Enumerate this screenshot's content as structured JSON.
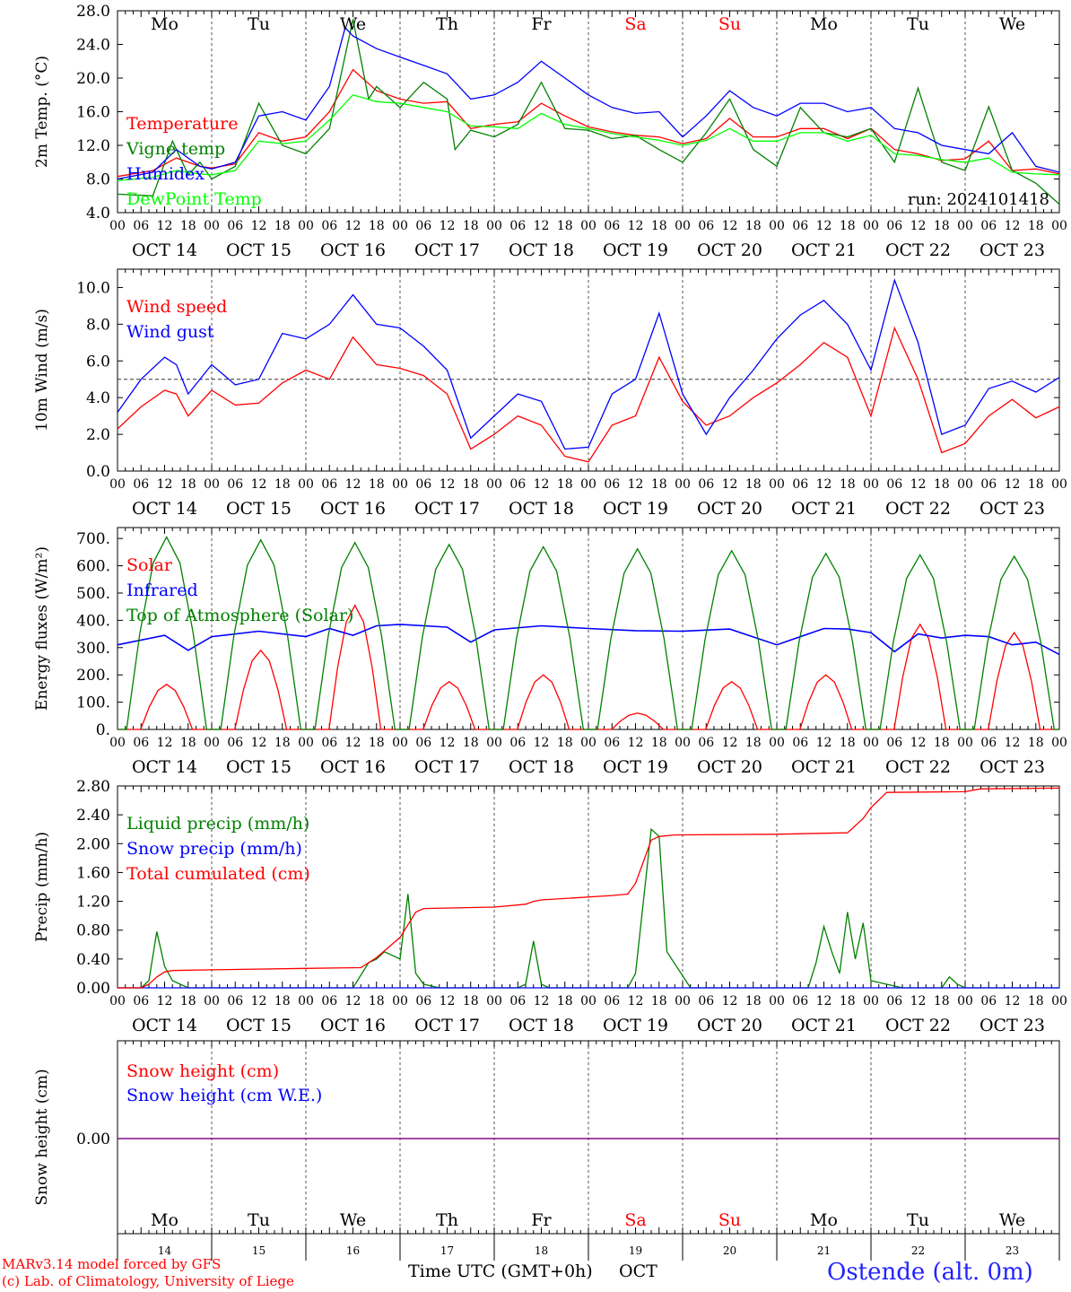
{
  "run_label": "run: 2024101418",
  "day_abbrevs": [
    "Mo",
    "Tu",
    "We",
    "Th",
    "Fr",
    "Sa",
    "Su",
    "Mo",
    "Tu",
    "We"
  ],
  "day_colors": [
    "#000000",
    "#000000",
    "#000000",
    "#000000",
    "#000000",
    "#ff0000",
    "#ff0000",
    "#000000",
    "#000000",
    "#000000"
  ],
  "date_labels": [
    "OCT 14",
    "OCT 15",
    "OCT 16",
    "OCT 17",
    "OCT 18",
    "OCT 19",
    "OCT 20",
    "OCT 21",
    "OCT 22",
    "OCT 23"
  ],
  "hour_labels": [
    "00",
    "06",
    "12",
    "18"
  ],
  "bottom_day_numbers": [
    "14",
    "15",
    "16",
    "17",
    "18",
    "19",
    "20",
    "21",
    "22",
    "23"
  ],
  "x_axis_title": "Time UTC (GMT+0h)",
  "x_axis_month": "OCT",
  "footer_left_1": "MARv3.14 model forced by GFS",
  "footer_left_2": "(c) Lab. of Climatology, University of Liege",
  "footer_right": "Ostende (alt. 0m)",
  "chart_data": [
    {
      "id": "temp",
      "type": "line",
      "ylabel": "2m Temp. (°C)",
      "ylim": [
        4,
        28
      ],
      "yticks": [
        "4.0",
        "8.0",
        "12.0",
        "16.0",
        "20.0",
        "24.0",
        "28.0"
      ],
      "x_unit": "hours since OCT 14 00 UTC",
      "series": [
        {
          "name": "Temperature",
          "color": "#ff0000",
          "x": [
            0,
            9,
            15,
            21,
            24,
            30,
            36,
            42,
            48,
            54,
            60,
            66,
            72,
            78,
            84,
            90,
            96,
            102,
            108,
            114,
            120,
            126,
            132,
            138,
            144,
            150,
            156,
            162,
            168,
            174,
            180,
            186,
            192,
            198,
            204,
            210,
            216,
            222,
            228,
            234,
            240
          ],
          "y": [
            8.3,
            9.0,
            10.5,
            9.5,
            9.3,
            9.8,
            13.5,
            12.5,
            13.0,
            16.0,
            21.0,
            18.5,
            17.5,
            17.0,
            17.2,
            14.0,
            14.5,
            14.8,
            17.0,
            15.5,
            14.2,
            13.6,
            13.2,
            13.0,
            12.2,
            12.8,
            15.2,
            13.0,
            13.0,
            14.0,
            14.0,
            12.8,
            14.0,
            11.5,
            11.0,
            10.2,
            10.4,
            12.5,
            9.0,
            9.2,
            8.6
          ]
        },
        {
          "name": "Vigne temp",
          "color": "#008000",
          "x": [
            0,
            9,
            14,
            18,
            21,
            24,
            30,
            36,
            42,
            48,
            54,
            60,
            64,
            66,
            72,
            78,
            84,
            86,
            90,
            96,
            102,
            108,
            114,
            120,
            126,
            132,
            138,
            144,
            150,
            156,
            162,
            168,
            174,
            180,
            186,
            192,
            198,
            204,
            210,
            216,
            222,
            228,
            234,
            240
          ],
          "y": [
            6.2,
            6.0,
            12.5,
            8.5,
            10.0,
            8.0,
            9.5,
            17.0,
            12.0,
            11.0,
            14.0,
            27.0,
            17.5,
            19.0,
            16.5,
            19.5,
            17.5,
            11.5,
            13.8,
            13.0,
            14.5,
            19.5,
            14.0,
            13.8,
            12.8,
            13.2,
            11.5,
            10.0,
            13.5,
            17.5,
            11.5,
            9.5,
            16.5,
            13.5,
            13.0,
            14.0,
            10.0,
            18.8,
            10.0,
            9.0,
            16.6,
            9.0,
            7.5,
            5.0
          ]
        },
        {
          "name": "Humidex",
          "color": "#0000ff",
          "x": [
            0,
            9,
            15,
            21,
            24,
            30,
            36,
            42,
            48,
            54,
            58,
            60,
            66,
            72,
            78,
            84,
            90,
            96,
            102,
            108,
            114,
            120,
            126,
            132,
            138,
            144,
            150,
            156,
            162,
            168,
            174,
            180,
            186,
            192,
            198,
            204,
            210,
            216,
            222,
            228,
            234,
            240
          ],
          "y": [
            8.0,
            8.8,
            11.5,
            9.5,
            9.2,
            10.0,
            15.5,
            16.0,
            15.0,
            19.0,
            26.0,
            25.0,
            23.5,
            22.5,
            21.5,
            20.5,
            17.5,
            18.0,
            19.5,
            22.0,
            20.0,
            18.0,
            16.5,
            15.8,
            16.0,
            13.0,
            15.5,
            18.5,
            16.5,
            15.5,
            17.0,
            17.0,
            16.0,
            16.5,
            14.0,
            13.5,
            12.0,
            11.5,
            11.0,
            13.5,
            9.5,
            8.8
          ]
        },
        {
          "name": "DewPoint Temp",
          "color": "#00ff00",
          "x": [
            0,
            9,
            15,
            21,
            24,
            30,
            36,
            42,
            48,
            54,
            60,
            66,
            72,
            78,
            84,
            90,
            96,
            102,
            108,
            114,
            120,
            126,
            132,
            138,
            144,
            150,
            156,
            162,
            168,
            174,
            180,
            186,
            192,
            198,
            204,
            210,
            216,
            222,
            228,
            234,
            240
          ],
          "y": [
            7.8,
            8.2,
            9.0,
            8.6,
            8.5,
            9.0,
            12.5,
            12.2,
            12.5,
            15.0,
            18.0,
            17.2,
            17.0,
            16.5,
            16.0,
            14.3,
            14.2,
            14.0,
            15.8,
            14.5,
            14.0,
            13.4,
            13.0,
            12.6,
            12.0,
            12.6,
            14.0,
            12.5,
            12.5,
            13.5,
            13.5,
            12.5,
            13.2,
            11.0,
            10.8,
            10.3,
            10.0,
            10.5,
            8.8,
            8.6,
            8.5
          ]
        }
      ]
    },
    {
      "id": "wind",
      "type": "line",
      "ylabel": "10m Wind (m/s)",
      "ylim": [
        0,
        11
      ],
      "yticks": [
        "0.0",
        "2.0",
        "4.0",
        "6.0",
        "8.0",
        "10.0"
      ],
      "ref_line": 5,
      "series": [
        {
          "name": "Wind speed",
          "color": "#ff0000",
          "x": [
            0,
            6,
            12,
            15,
            18,
            24,
            30,
            36,
            42,
            48,
            54,
            60,
            66,
            72,
            78,
            84,
            90,
            96,
            102,
            108,
            114,
            120,
            126,
            132,
            138,
            144,
            150,
            156,
            162,
            168,
            174,
            180,
            186,
            192,
            198,
            204,
            210,
            216,
            222,
            228,
            234,
            240
          ],
          "y": [
            2.3,
            3.5,
            4.4,
            4.2,
            3.0,
            4.4,
            3.6,
            3.7,
            4.8,
            5.5,
            5.0,
            7.3,
            5.8,
            5.6,
            5.2,
            4.2,
            1.2,
            2.0,
            3.0,
            2.5,
            0.8,
            0.5,
            2.5,
            3.0,
            6.2,
            3.8,
            2.5,
            3.0,
            4.0,
            4.8,
            5.8,
            7.0,
            6.2,
            3.0,
            7.8,
            5.0,
            1.0,
            1.5,
            3.0,
            3.9,
            2.9,
            3.5
          ]
        },
        {
          "name": "Wind gust",
          "color": "#0000ff",
          "x": [
            0,
            6,
            12,
            15,
            18,
            24,
            30,
            36,
            42,
            48,
            54,
            60,
            66,
            72,
            78,
            84,
            90,
            96,
            102,
            108,
            114,
            120,
            126,
            132,
            138,
            144,
            150,
            156,
            162,
            168,
            174,
            180,
            186,
            192,
            198,
            204,
            210,
            216,
            222,
            228,
            234,
            240
          ],
          "y": [
            3.2,
            5.0,
            6.2,
            5.8,
            4.2,
            5.8,
            4.7,
            5.0,
            7.5,
            7.2,
            8.0,
            9.6,
            8.0,
            7.8,
            6.8,
            5.5,
            1.8,
            3.0,
            4.2,
            3.8,
            1.2,
            1.3,
            4.2,
            5.0,
            8.6,
            4.2,
            2.0,
            4.0,
            5.5,
            7.2,
            8.5,
            9.3,
            8.0,
            5.5,
            10.4,
            7.0,
            2.0,
            2.5,
            4.5,
            4.9,
            4.3,
            5.1
          ]
        }
      ]
    },
    {
      "id": "energy",
      "type": "line",
      "ylabel": "Energy fluxes (W/m²)",
      "ylim": [
        0,
        740
      ],
      "yticks": [
        "0.",
        "100.",
        "200.",
        "300.",
        "400.",
        "500.",
        "600.",
        "700."
      ],
      "daily_peaks": {
        "solar": [
          165,
          290,
          455,
          175,
          200,
          60,
          175,
          200,
          385,
          355
        ],
        "toa": [
          705,
          695,
          685,
          678,
          670,
          662,
          655,
          645,
          640,
          635
        ]
      },
      "series": [
        {
          "name": "Solar",
          "color": "#ff0000"
        },
        {
          "name": "Infrared",
          "color": "#0000ff",
          "x": [
            0,
            12,
            18,
            24,
            36,
            48,
            54,
            60,
            66,
            72,
            84,
            90,
            96,
            108,
            120,
            132,
            144,
            156,
            168,
            180,
            186,
            192,
            198,
            204,
            210,
            216,
            222,
            228,
            234,
            240
          ],
          "y": [
            310,
            345,
            290,
            340,
            360,
            340,
            370,
            345,
            380,
            385,
            375,
            320,
            365,
            380,
            370,
            362,
            360,
            368,
            310,
            370,
            368,
            355,
            285,
            350,
            335,
            345,
            340,
            310,
            320,
            275
          ]
        },
        {
          "name": "Top of Atmosphere (Solar)",
          "color": "#008000"
        }
      ]
    },
    {
      "id": "precip",
      "type": "line",
      "ylabel": "Precip (mm/h)",
      "ylim": [
        0,
        2.8
      ],
      "yticks": [
        "0.00",
        "0.40",
        "0.80",
        "1.20",
        "1.60",
        "2.00",
        "2.40",
        "2.80"
      ],
      "series": [
        {
          "name": "Liquid precip (mm/h)",
          "color": "#008000",
          "x": [
            0,
            6,
            8,
            10,
            12,
            14,
            18,
            24,
            60,
            64,
            66,
            68,
            70,
            72,
            74,
            76,
            78,
            82,
            102,
            104,
            106,
            108,
            110,
            130,
            132,
            134,
            136,
            138,
            140,
            146,
            176,
            178,
            180,
            182,
            184,
            186,
            188,
            190,
            192,
            200,
            210,
            212,
            214,
            216,
            240
          ],
          "y": [
            0,
            0,
            0.1,
            0.78,
            0.3,
            0.1,
            0,
            0,
            0,
            0.35,
            0.4,
            0.5,
            0.45,
            0.4,
            1.3,
            0.2,
            0.05,
            0,
            0,
            0.05,
            0.65,
            0.05,
            0,
            0,
            0.2,
            1.2,
            2.2,
            2.1,
            0.5,
            0,
            0,
            0.35,
            0.85,
            0.5,
            0.2,
            1.05,
            0.4,
            0.9,
            0.1,
            0,
            0,
            0.15,
            0.05,
            0,
            0
          ]
        },
        {
          "name": "Snow precip (mm/h)",
          "color": "#0000ff",
          "x": [
            0,
            240
          ],
          "y": [
            0,
            0
          ]
        },
        {
          "name": "Total cumulated (cm)",
          "color": "#ff0000",
          "x": [
            0,
            6,
            8,
            10,
            12,
            14,
            24,
            48,
            62,
            66,
            72,
            76,
            78,
            96,
            104,
            106,
            108,
            126,
            130,
            132,
            134,
            136,
            138,
            142,
            168,
            186,
            190,
            192,
            196,
            216,
            220,
            240
          ],
          "y": [
            0,
            0,
            0.05,
            0.15,
            0.22,
            0.24,
            0.25,
            0.27,
            0.28,
            0.42,
            0.7,
            1.05,
            1.1,
            1.12,
            1.16,
            1.2,
            1.22,
            1.28,
            1.3,
            1.45,
            1.75,
            2.05,
            2.1,
            2.12,
            2.13,
            2.15,
            2.35,
            2.5,
            2.71,
            2.72,
            2.76,
            2.77
          ]
        }
      ]
    },
    {
      "id": "snow",
      "type": "line",
      "ylabel": "Snow height (cm)",
      "yticks": [
        "0.00"
      ],
      "series": [
        {
          "name": "Snow height (cm)",
          "color": "#ff0000",
          "x": [
            0,
            240
          ],
          "y": [
            0,
            0
          ]
        },
        {
          "name": "Snow height (cm W.E.)",
          "color": "#0000ff",
          "x": [
            0,
            240
          ],
          "y": [
            0,
            0
          ]
        }
      ]
    }
  ]
}
